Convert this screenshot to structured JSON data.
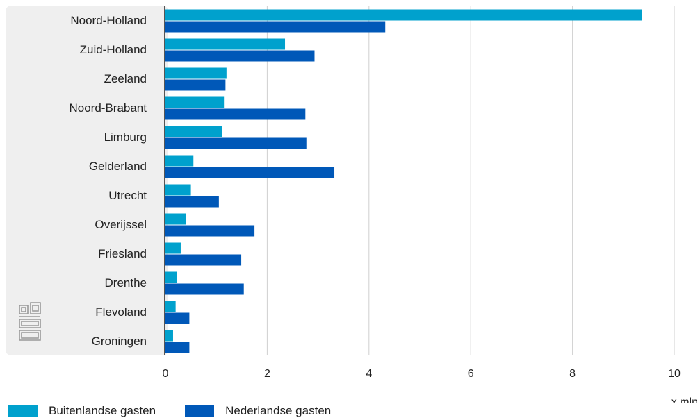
{
  "chart_data": {
    "type": "bar",
    "orientation": "horizontal",
    "categories": [
      "Noord-Holland",
      "Zuid-Holland",
      "Zeeland",
      "Noord-Brabant",
      "Limburg",
      "Gelderland",
      "Utrecht",
      "Overijssel",
      "Friesland",
      "Drenthe",
      "Flevoland",
      "Groningen"
    ],
    "series": [
      {
        "name": "Buitenlandse gasten",
        "color": "#00a1cd",
        "values": [
          9.36,
          2.35,
          1.2,
          1.15,
          1.12,
          0.55,
          0.5,
          0.4,
          0.3,
          0.23,
          0.2,
          0.15
        ]
      },
      {
        "name": "Nederlandse gasten",
        "color": "#0058b8",
        "values": [
          4.32,
          2.93,
          1.18,
          2.75,
          2.77,
          3.32,
          1.05,
          1.75,
          1.49,
          1.54,
          0.47,
          0.47
        ]
      }
    ],
    "xlim": [
      0,
      10
    ],
    "ticks": [
      "0",
      "2",
      "4",
      "6",
      "8",
      "10"
    ],
    "unit": "x mln",
    "grid": "vertical",
    "legend_position": "bottom-left",
    "label_panel_color": "#efefef",
    "logo": "cbs-logo"
  }
}
